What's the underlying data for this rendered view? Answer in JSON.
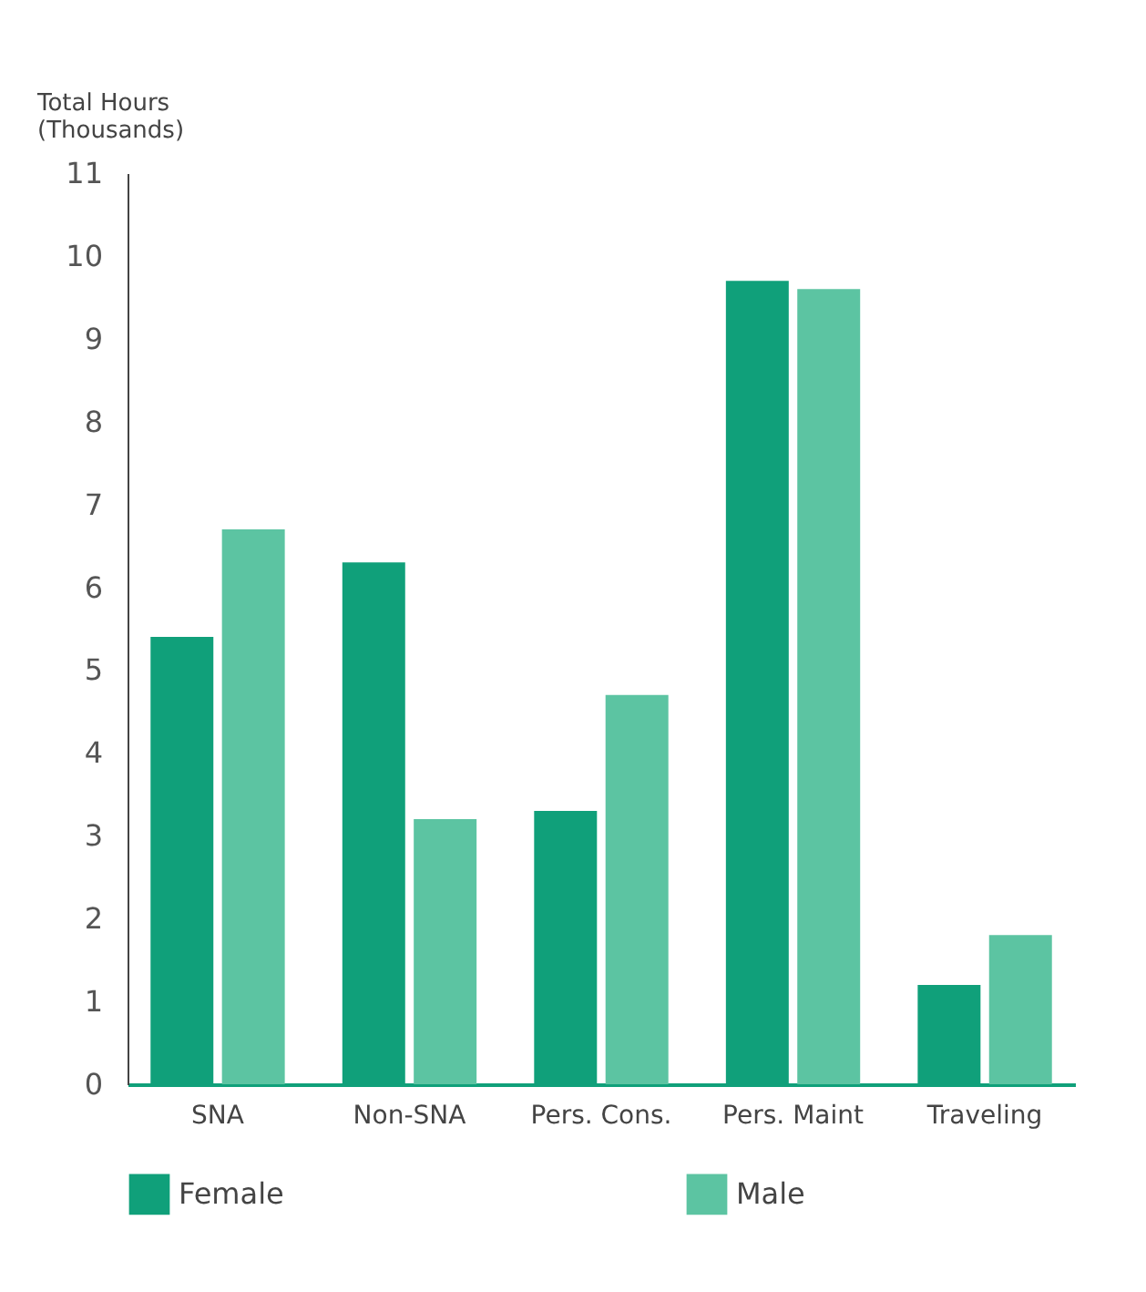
{
  "chart_data": {
    "type": "bar",
    "ylabel": "Total Hours\n(Thousands)",
    "categories": [
      "SNA",
      "Non-SNA",
      "Pers. Cons.",
      "Pers. Maint",
      "Traveling"
    ],
    "series": [
      {
        "name": "Female",
        "color": "#10a07a",
        "values": [
          5.4,
          6.3,
          3.3,
          9.7,
          1.2
        ]
      },
      {
        "name": "Male",
        "color": "#5cc4a2",
        "values": [
          6.7,
          3.2,
          4.7,
          9.6,
          1.8
        ]
      }
    ],
    "ylim": [
      0,
      11
    ],
    "yticks": [
      0,
      1,
      2,
      3,
      4,
      5,
      6,
      7,
      8,
      9,
      10,
      11
    ],
    "grid": false,
    "legend": "bottom"
  }
}
